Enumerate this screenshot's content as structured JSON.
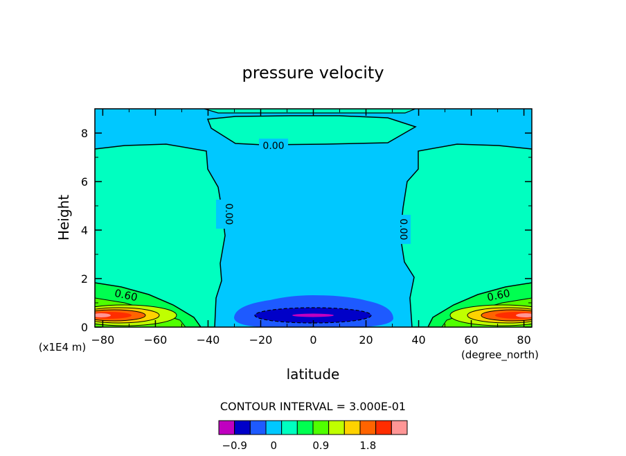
{
  "chart_data": {
    "type": "contour",
    "title": "pressure velocity",
    "xlabel": "latitude",
    "xunits": "(degree_north)",
    "ylabel": "Height",
    "yunits": "(x1E4 m)",
    "xlim": [
      -83,
      83
    ],
    "ylim": [
      0,
      9
    ],
    "x_ticks": [
      -80,
      -60,
      -40,
      -20,
      0,
      20,
      40,
      60,
      80
    ],
    "y_ticks": [
      0,
      2,
      4,
      6,
      8
    ],
    "contour_interval_text": "CONTOUR INTERVAL = 3.000E-01",
    "contour_labels": [
      "0.00",
      "0.00",
      "0.00",
      "0.60",
      "0.60"
    ],
    "colorbar": {
      "tick_labels": [
        "-0.9",
        "0",
        "0.9",
        "1.8"
      ],
      "colors": [
        "#c000c0",
        "#0000c8",
        "#1e5aff",
        "#00c8ff",
        "#00ffc0",
        "#00ff50",
        "#50ff00",
        "#c0ff00",
        "#ffd200",
        "#ff6400",
        "#ff2d00",
        "#ff9696"
      ]
    },
    "regions": [
      {
        "level": "0 to 0.3",
        "color": "#00c8ff",
        "desc": "background"
      },
      {
        "level": "0.3 to 0.6",
        "color": "#00ffc0",
        "desc": "extratropics"
      },
      {
        "level": "high",
        "color": "#ff2d00",
        "desc": "polar low-level maxima"
      },
      {
        "level": "-0.9 to -0.6",
        "color": "#0000c8",
        "desc": "equatorial minimum"
      }
    ]
  }
}
